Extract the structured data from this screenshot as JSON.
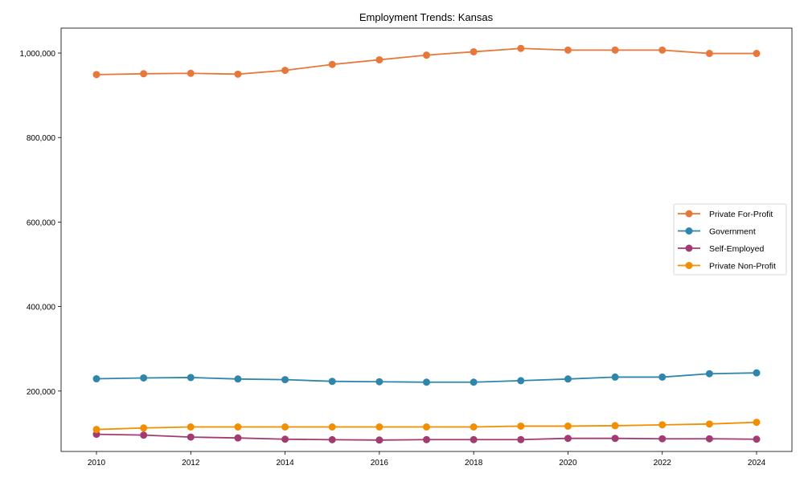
{
  "chart_data": {
    "type": "line",
    "title": "Employment Trends: Kansas",
    "xlabel": "",
    "ylabel": "",
    "x": [
      2010,
      2011,
      2012,
      2013,
      2014,
      2015,
      2016,
      2017,
      2018,
      2019,
      2020,
      2021,
      2022,
      2023,
      2024
    ],
    "xticks": [
      2010,
      2012,
      2014,
      2016,
      2018,
      2020,
      2022,
      2024
    ],
    "xtick_labels": [
      "2010",
      "2012",
      "2014",
      "2016",
      "2018",
      "2020",
      "2022",
      "2024"
    ],
    "yticks": [
      200000,
      400000,
      600000,
      800000,
      1000000
    ],
    "ytick_labels": [
      "200,000",
      "400,000",
      "600,000",
      "800,000",
      "1,000,000"
    ],
    "xlim": [
      2009.25,
      2024.75
    ],
    "ylim": [
      57000,
      1059000
    ],
    "grid": false,
    "legend_position": "center-right",
    "series": [
      {
        "name": "Private For-Profit",
        "color": "#E8773A",
        "values": [
          949000,
          951000,
          952000,
          950000,
          959000,
          973000,
          984000,
          995000,
          1003000,
          1011000,
          1007000,
          1007000,
          1007000,
          999000,
          999000
        ]
      },
      {
        "name": "Government",
        "color": "#2E86AB",
        "values": [
          229000,
          231000,
          232000,
          228500,
          227000,
          223000,
          222000,
          221000,
          221000,
          224500,
          228500,
          233000,
          233000,
          241000,
          243000
        ]
      },
      {
        "name": "Self-Employed",
        "color": "#A23B72",
        "values": [
          97700,
          95700,
          91000,
          89000,
          86000,
          84800,
          84000,
          85000,
          85000,
          85000,
          88000,
          88000,
          87000,
          87000,
          86000
        ]
      },
      {
        "name": "Private Non-Profit",
        "color": "#F18F01",
        "values": [
          109000,
          112600,
          115000,
          115000,
          115000,
          115000,
          115000,
          115000,
          115000,
          117000,
          117000,
          118000,
          120000,
          122000,
          126000
        ]
      }
    ]
  }
}
